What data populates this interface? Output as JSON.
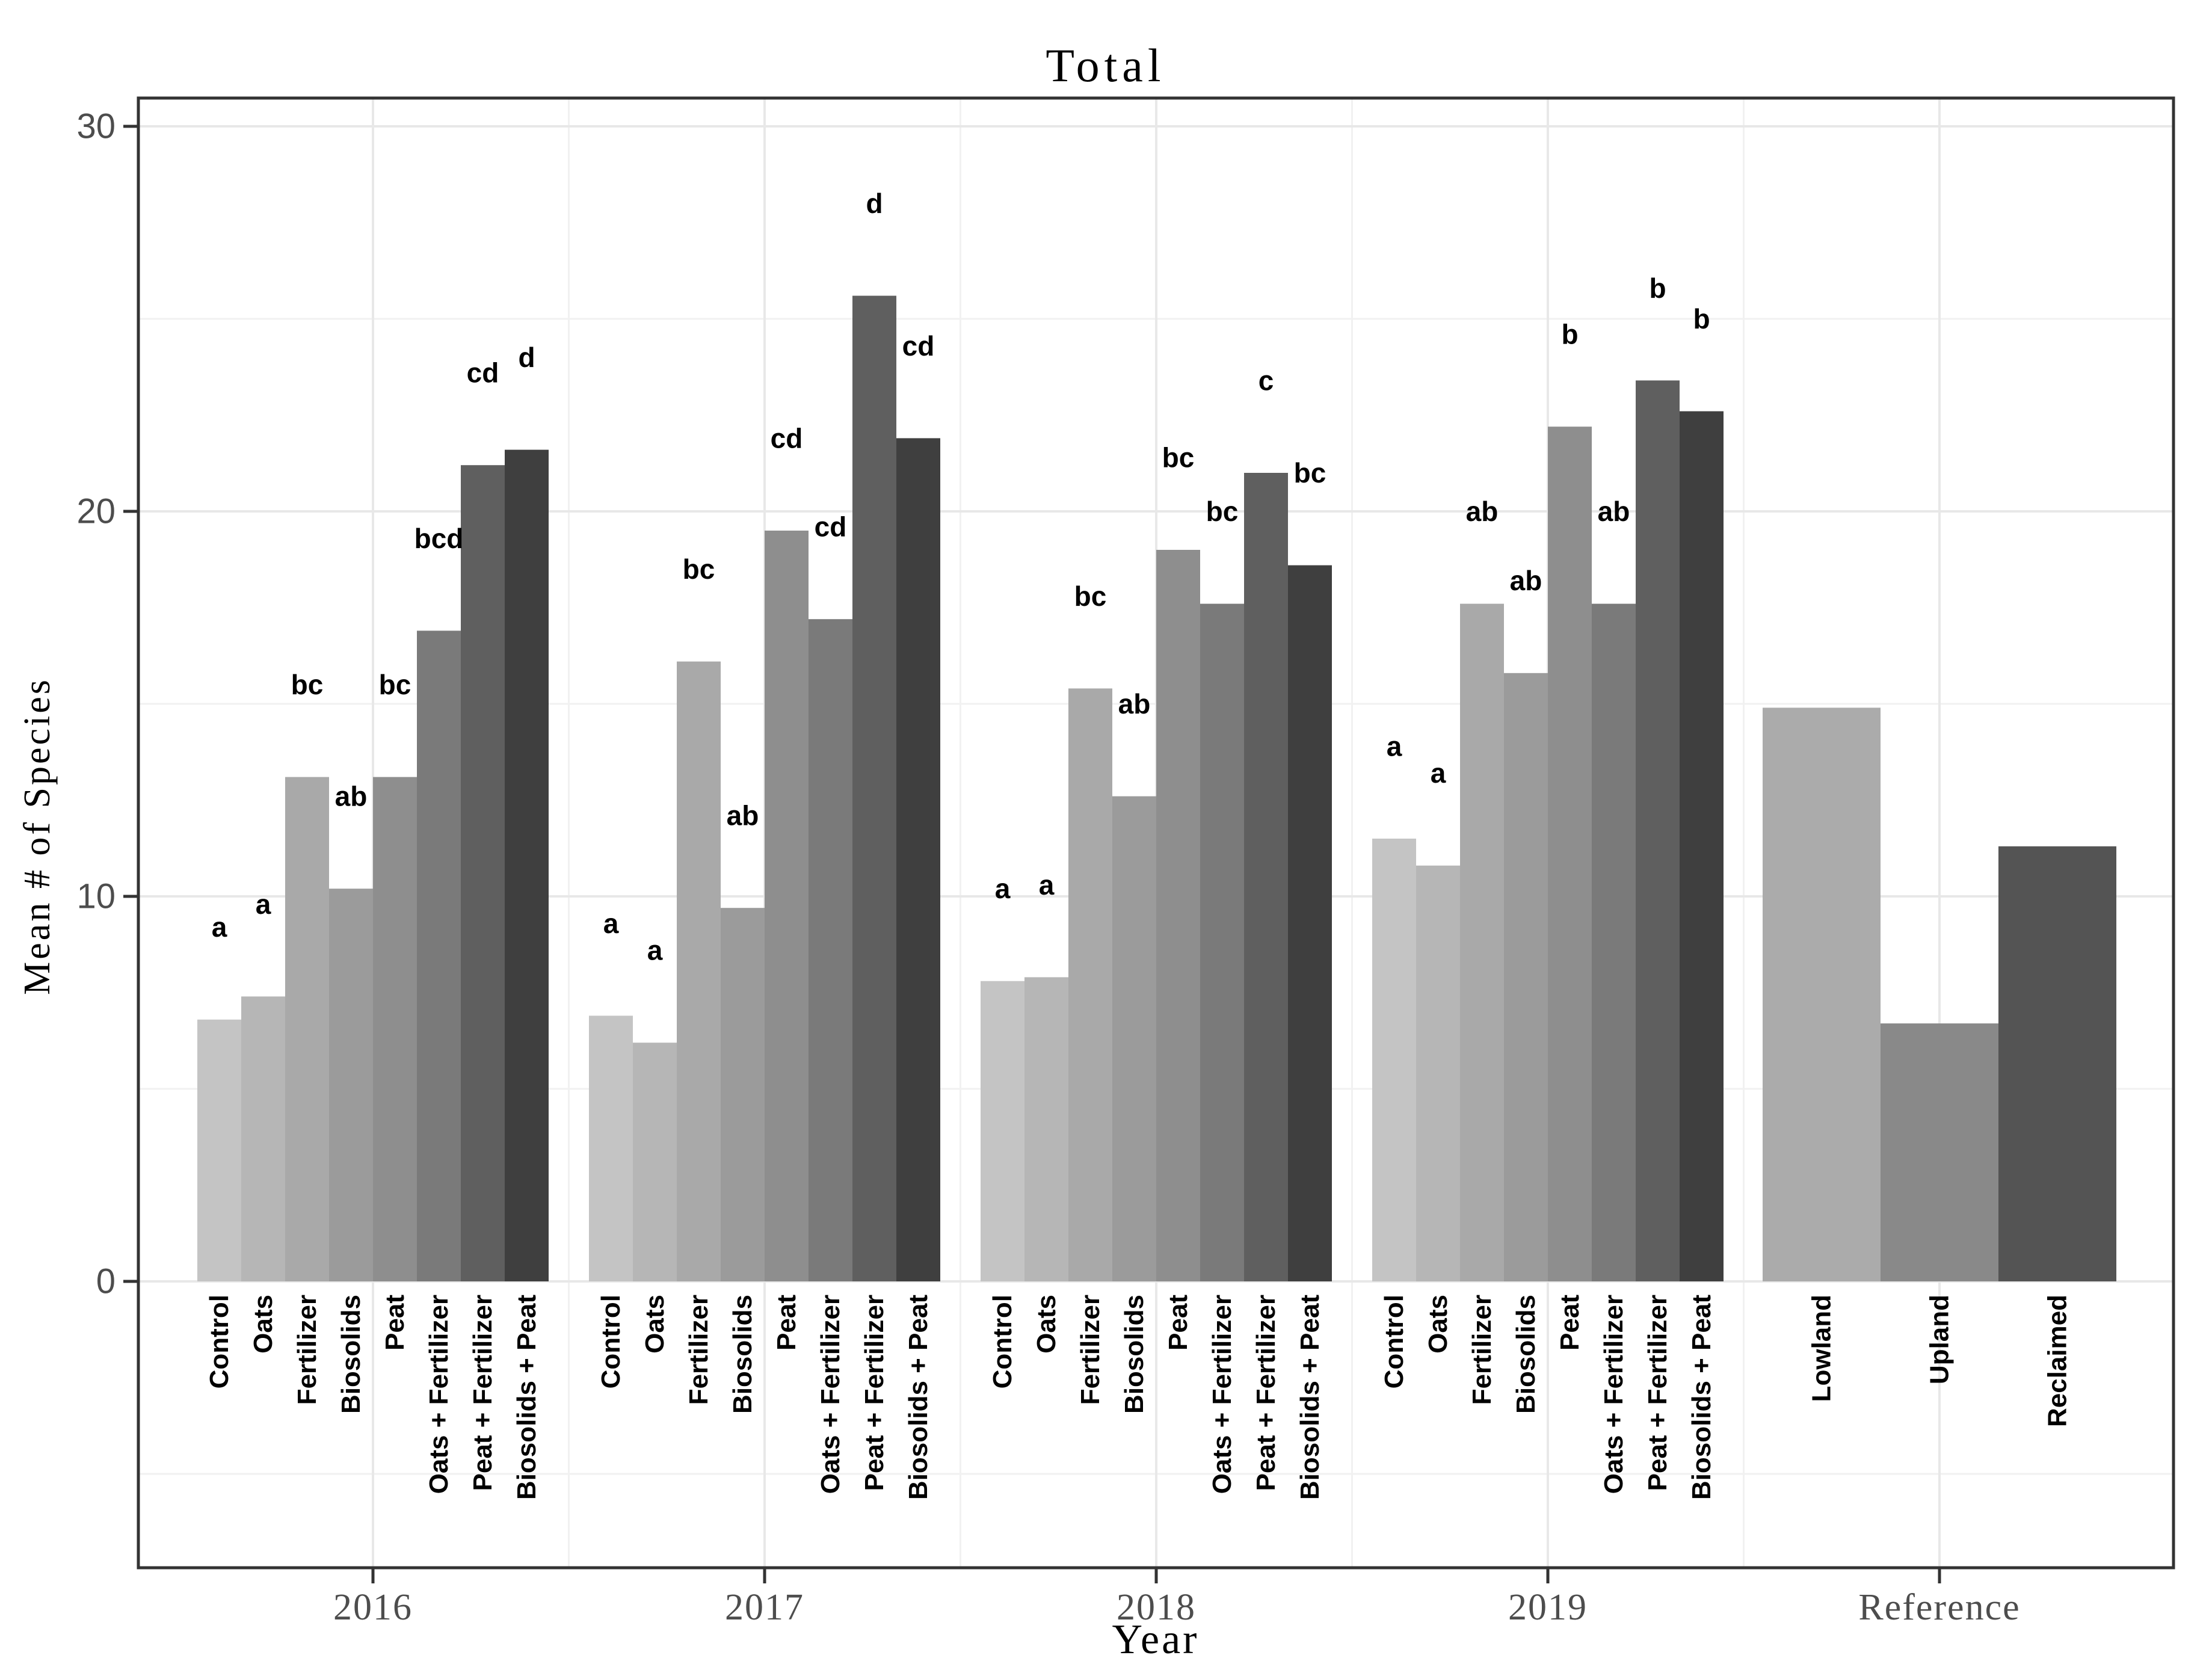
{
  "chart_data": {
    "type": "bar",
    "title": "Total",
    "xlabel": "Year",
    "ylabel": "Mean # of Species",
    "ylim": [
      -7.4,
      30.7
    ],
    "y_major_ticks": [
      0,
      10,
      20,
      30
    ],
    "y_minor_ticks": [
      -5,
      5,
      15,
      25
    ],
    "grid": true,
    "legend": false,
    "sig_letter_offset": 2.4,
    "axis_color": "#333333",
    "tick_label_color": "#4d4d4d",
    "panel_background": "#ffffff",
    "major_grid_color": "#e8e8e8",
    "minor_grid_color": "#f1f1f1",
    "treatments": [
      "Control",
      "Oats",
      "Fertilizer",
      "Biosolids",
      "Peat",
      "Oats + Fertilizer",
      "Peat + Fertilizer",
      "Biosolids + Peat"
    ],
    "treatment_colors": [
      "#c4c4c4",
      "#b6b6b6",
      "#a9a9a9",
      "#9b9b9b",
      "#8e8e8e",
      "#7a7a7a",
      "#5f5f5f",
      "#3f3f3f"
    ],
    "reference_colors": [
      "#ababab",
      "#898989",
      "#545454"
    ],
    "groups": [
      {
        "category": "2016",
        "bars": [
          {
            "label": "Control",
            "value": 6.8,
            "letter": "a"
          },
          {
            "label": "Oats",
            "value": 7.4,
            "letter": "a"
          },
          {
            "label": "Fertilizer",
            "value": 13.1,
            "letter": "bc"
          },
          {
            "label": "Biosolids",
            "value": 10.2,
            "letter": "ab"
          },
          {
            "label": "Peat",
            "value": 13.1,
            "letter": "bc"
          },
          {
            "label": "Oats + Fertilizer",
            "value": 16.9,
            "letter": "bcd"
          },
          {
            "label": "Peat + Fertilizer",
            "value": 21.2,
            "letter": "cd"
          },
          {
            "label": "Biosolids + Peat",
            "value": 21.6,
            "letter": "d"
          }
        ]
      },
      {
        "category": "2017",
        "bars": [
          {
            "label": "Control",
            "value": 6.9,
            "letter": "a"
          },
          {
            "label": "Oats",
            "value": 6.2,
            "letter": "a"
          },
          {
            "label": "Fertilizer",
            "value": 16.1,
            "letter": "bc"
          },
          {
            "label": "Biosolids",
            "value": 9.7,
            "letter": "ab"
          },
          {
            "label": "Peat",
            "value": 19.5,
            "letter": "cd"
          },
          {
            "label": "Oats + Fertilizer",
            "value": 17.2,
            "letter": "cd"
          },
          {
            "label": "Peat + Fertilizer",
            "value": 25.6,
            "letter": "d"
          },
          {
            "label": "Biosolids + Peat",
            "value": 21.9,
            "letter": "cd"
          }
        ]
      },
      {
        "category": "2018",
        "bars": [
          {
            "label": "Control",
            "value": 7.8,
            "letter": "a"
          },
          {
            "label": "Oats",
            "value": 7.9,
            "letter": "a"
          },
          {
            "label": "Fertilizer",
            "value": 15.4,
            "letter": "bc"
          },
          {
            "label": "Biosolids",
            "value": 12.6,
            "letter": "ab"
          },
          {
            "label": "Peat",
            "value": 19.0,
            "letter": "bc"
          },
          {
            "label": "Oats + Fertilizer",
            "value": 17.6,
            "letter": "bc"
          },
          {
            "label": "Peat + Fertilizer",
            "value": 21.0,
            "letter": "c"
          },
          {
            "label": "Biosolids + Peat",
            "value": 18.6,
            "letter": "bc"
          }
        ]
      },
      {
        "category": "2019",
        "bars": [
          {
            "label": "Control",
            "value": 11.5,
            "letter": "a"
          },
          {
            "label": "Oats",
            "value": 10.8,
            "letter": "a"
          },
          {
            "label": "Fertilizer",
            "value": 17.6,
            "letter": "ab"
          },
          {
            "label": "Biosolids",
            "value": 15.8,
            "letter": "ab"
          },
          {
            "label": "Peat",
            "value": 22.2,
            "letter": "b"
          },
          {
            "label": "Oats + Fertilizer",
            "value": 17.6,
            "letter": "ab"
          },
          {
            "label": "Peat + Fertilizer",
            "value": 23.4,
            "letter": "b"
          },
          {
            "label": "Biosolids + Peat",
            "value": 22.6,
            "letter": "b"
          }
        ]
      },
      {
        "category": "Reference",
        "bars": [
          {
            "label": "Lowland",
            "value": 14.9,
            "letter": ""
          },
          {
            "label": "Upland",
            "value": 6.7,
            "letter": ""
          },
          {
            "label": "Reclaimed",
            "value": 11.3,
            "letter": ""
          }
        ]
      }
    ]
  }
}
